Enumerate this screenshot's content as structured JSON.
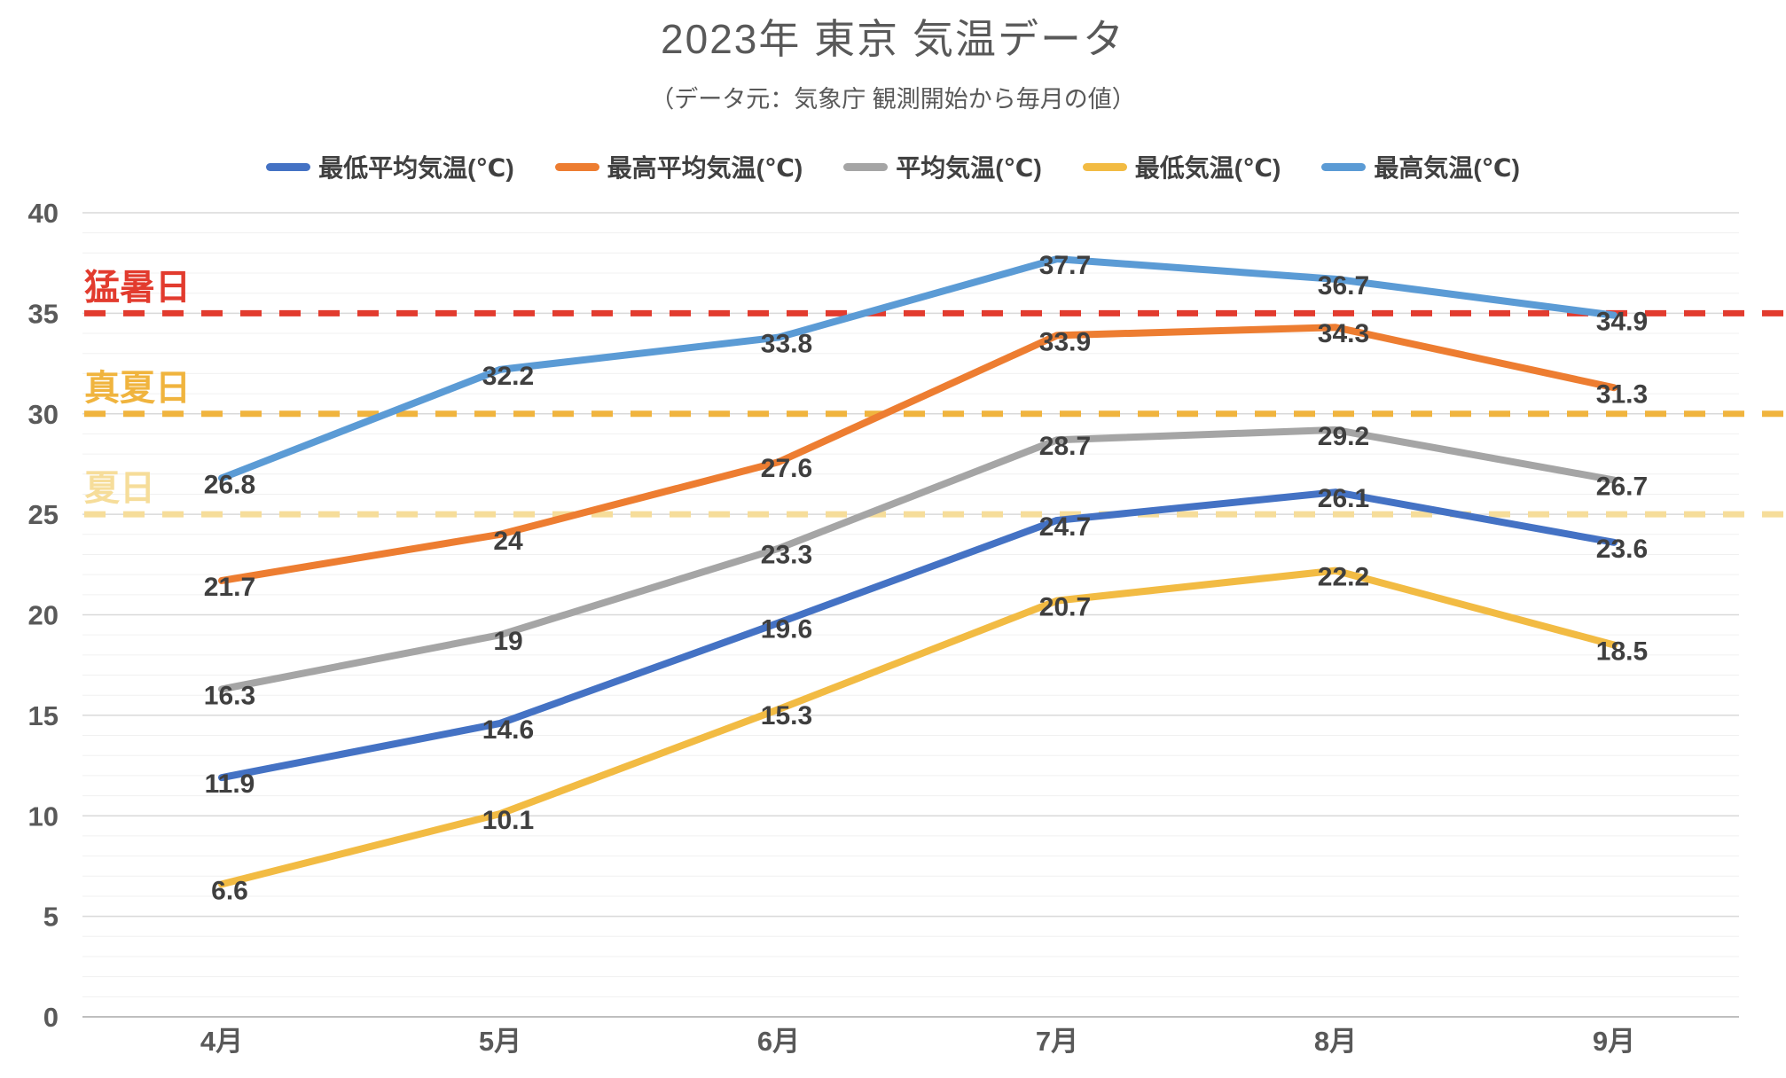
{
  "header": {
    "title": "2023年 東京 気温データ",
    "subtitle": "（データ元：気象庁 観測開始から毎月の値）"
  },
  "chart_data": {
    "type": "line",
    "title": "2023年 東京 気温データ",
    "subtitle": "（データ元：気象庁 観測開始から毎月の値）",
    "categories": [
      "4月",
      "5月",
      "6月",
      "7月",
      "8月",
      "9月"
    ],
    "series": [
      {
        "name": "最低平均気温(℃)",
        "color": "#4472C4",
        "values": [
          11.9,
          14.6,
          19.6,
          24.7,
          26.1,
          23.6
        ]
      },
      {
        "name": "最高平均気温(℃)",
        "color": "#ED7D31",
        "values": [
          21.7,
          24,
          27.6,
          33.9,
          34.3,
          31.3
        ]
      },
      {
        "name": "平均気温(℃)",
        "color": "#A5A5A5",
        "values": [
          16.3,
          19,
          23.3,
          28.7,
          29.2,
          26.7
        ]
      },
      {
        "name": "最低気温(℃)",
        "color": "#F2BB43",
        "values": [
          6.6,
          10.1,
          15.3,
          20.7,
          22.2,
          18.5
        ]
      },
      {
        "name": "最高気温(℃)",
        "color": "#5B9BD5",
        "values": [
          26.8,
          32.2,
          33.8,
          37.7,
          36.7,
          34.9
        ]
      }
    ],
    "reference_lines": [
      {
        "label": "猛暑日",
        "value": 35,
        "color": "#E23B2E"
      },
      {
        "label": "真夏日",
        "value": 30,
        "color": "#F0B43E"
      },
      {
        "label": "夏日",
        "value": 25,
        "color": "#F6DD9A"
      }
    ],
    "y_axis": {
      "min": 0,
      "max": 40,
      "major_step": 5,
      "minor_step": 1,
      "ticks": [
        0,
        5,
        10,
        15,
        20,
        25,
        30,
        35,
        40
      ]
    },
    "x_axis": {
      "ticks": [
        "4月",
        "5月",
        "6月",
        "7月",
        "8月",
        "9月"
      ]
    },
    "legend_position": "top",
    "grid": true,
    "colors": {
      "axis_text": "#595959",
      "data_label": "#3f3f3f",
      "minor_grid": "#f0f0f0",
      "major_grid": "#d9d9d9",
      "baseline": "#bfbfbf"
    }
  }
}
